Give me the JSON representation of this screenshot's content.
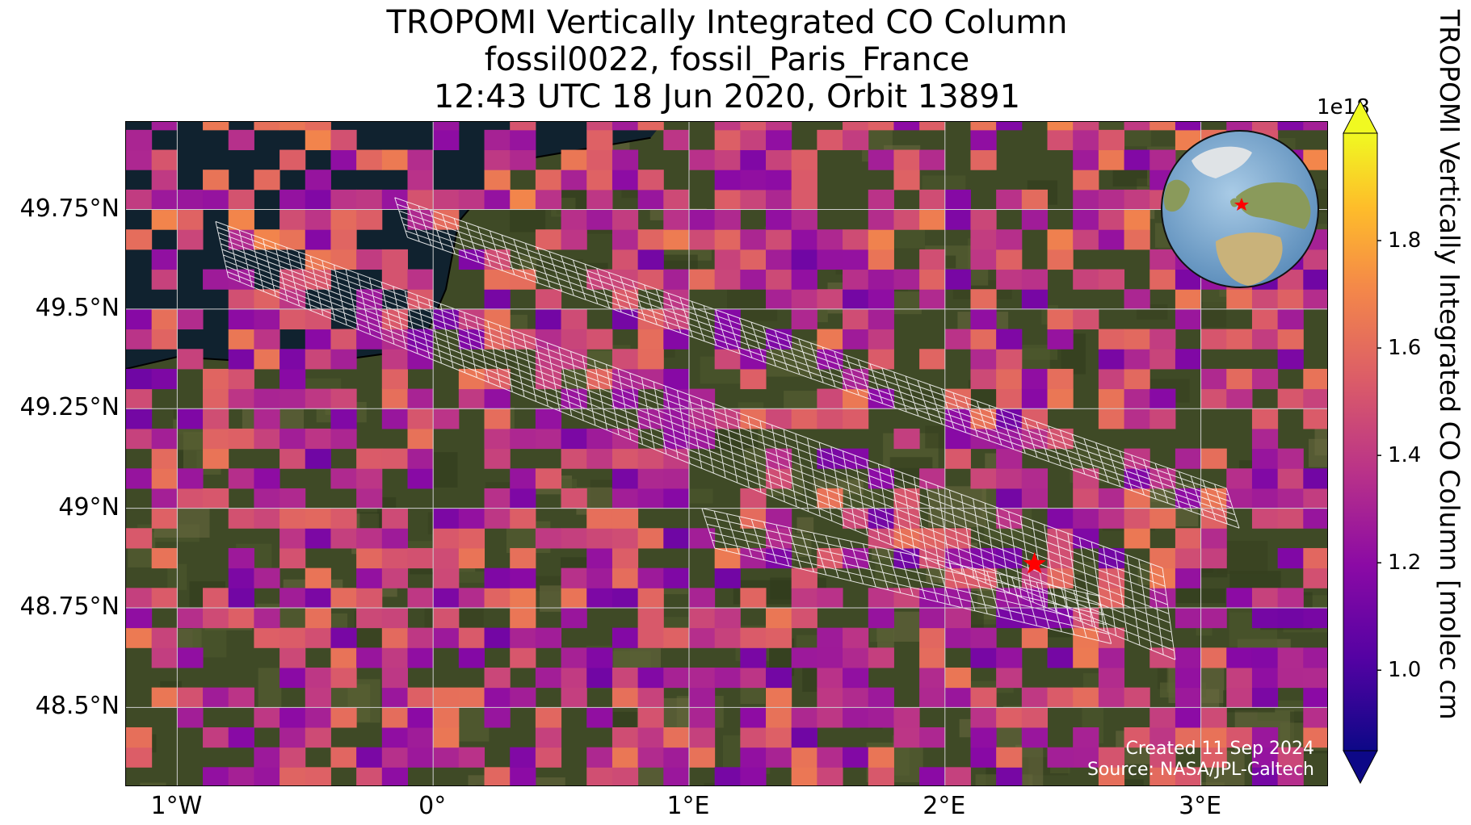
{
  "title": {
    "line1": "TROPOMI Vertically Integrated CO Column",
    "line2": "fossil0022, fossil_Paris_France",
    "line3": "12:43 UTC 18 Jun 2020, Orbit 13891"
  },
  "map": {
    "extent_lon": [
      -1.2,
      3.5
    ],
    "extent_lat": [
      48.3,
      49.97
    ],
    "lat_ticks": [
      {
        "value": 49.75,
        "label": "49.75°N"
      },
      {
        "value": 49.5,
        "label": "49.5°N"
      },
      {
        "value": 49.25,
        "label": "49.25°N"
      },
      {
        "value": 49.0,
        "label": "49°N"
      },
      {
        "value": 48.75,
        "label": "48.75°N"
      },
      {
        "value": 48.5,
        "label": "48.5°N"
      }
    ],
    "lon_ticks": [
      {
        "value": -1,
        "label": "1°W"
      },
      {
        "value": 0,
        "label": "0°"
      },
      {
        "value": 1,
        "label": "1°E"
      },
      {
        "value": 2,
        "label": "2°E"
      },
      {
        "value": 3,
        "label": "3°E"
      }
    ],
    "target_marker": {
      "lon": 2.35,
      "lat": 48.86,
      "color": "#ff0000"
    },
    "credit_created": "Created 11 Sep 2024",
    "credit_source": "Source: NASA/JPL-Caltech",
    "colors": {
      "land": "#3f4a26",
      "sea": "#10222f",
      "grid": "#cfcfcf"
    }
  },
  "colorbar": {
    "label": "TROPOMI Vertically Integrated CO Column [molec cm",
    "exponent": "1e18",
    "range": [
      0.85,
      2.0
    ],
    "ticks": [
      {
        "value": 1.0,
        "label": "1.0"
      },
      {
        "value": 1.2,
        "label": "1.2"
      },
      {
        "value": 1.4,
        "label": "1.4"
      },
      {
        "value": 1.6,
        "label": "1.6"
      },
      {
        "value": 1.8,
        "label": "1.8"
      }
    ],
    "colormap": "plasma"
  },
  "inset_globe": {
    "marker_color": "#ff0000"
  }
}
